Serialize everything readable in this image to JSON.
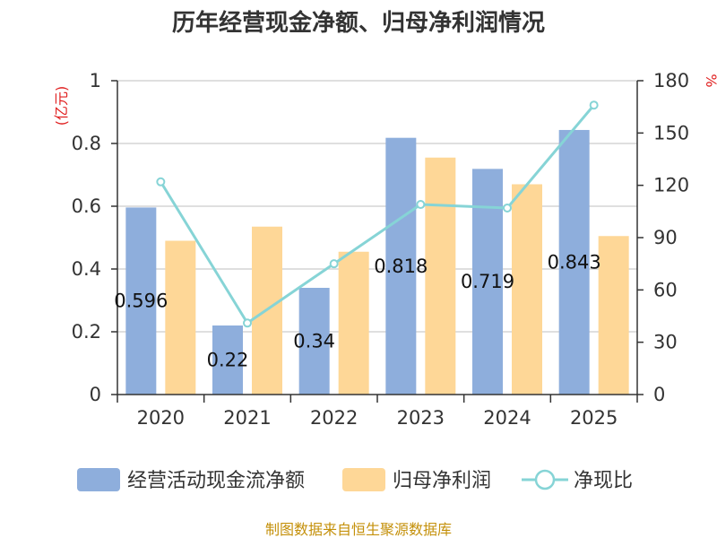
{
  "chart_data": {
    "type": "bar",
    "title": "历年经营现金净额、归母净利润情况",
    "categories": [
      "2020",
      "2021",
      "2022",
      "2023",
      "2024",
      "2025"
    ],
    "series": [
      {
        "name": "经营活动现金流净额",
        "kind": "bar",
        "axis": "left",
        "color": "#8eaedc",
        "values": [
          0.596,
          0.22,
          0.34,
          0.818,
          0.719,
          0.843
        ]
      },
      {
        "name": "归母净利润",
        "kind": "bar",
        "axis": "left",
        "color": "#fed797",
        "values": [
          0.49,
          0.535,
          0.455,
          0.755,
          0.67,
          0.505
        ]
      },
      {
        "name": "净现比",
        "kind": "line",
        "axis": "right",
        "color": "#86d4d6",
        "values": [
          122,
          41,
          75,
          109,
          107,
          166
        ]
      }
    ],
    "data_labels": [
      "0.596",
      "0.22",
      "0.34",
      "0.818",
      "0.719",
      "0.843"
    ],
    "left_axis": {
      "unit": "(亿元)",
      "min": 0,
      "max": 1,
      "ticks": [
        0,
        0.2,
        0.4,
        0.6,
        0.8,
        1
      ],
      "tick_labels": [
        "0",
        "0.2",
        "0.4",
        "0.6",
        "0.8",
        "1"
      ]
    },
    "right_axis": {
      "unit": "%",
      "min": 0,
      "max": 180,
      "ticks": [
        0,
        30,
        60,
        90,
        120,
        150,
        180
      ],
      "tick_labels": [
        "0",
        "30",
        "60",
        "90",
        "120",
        "150",
        "180"
      ]
    },
    "grid": true,
    "legend_position": "bottom",
    "source": "制图数据来自恒生聚源数据库"
  }
}
